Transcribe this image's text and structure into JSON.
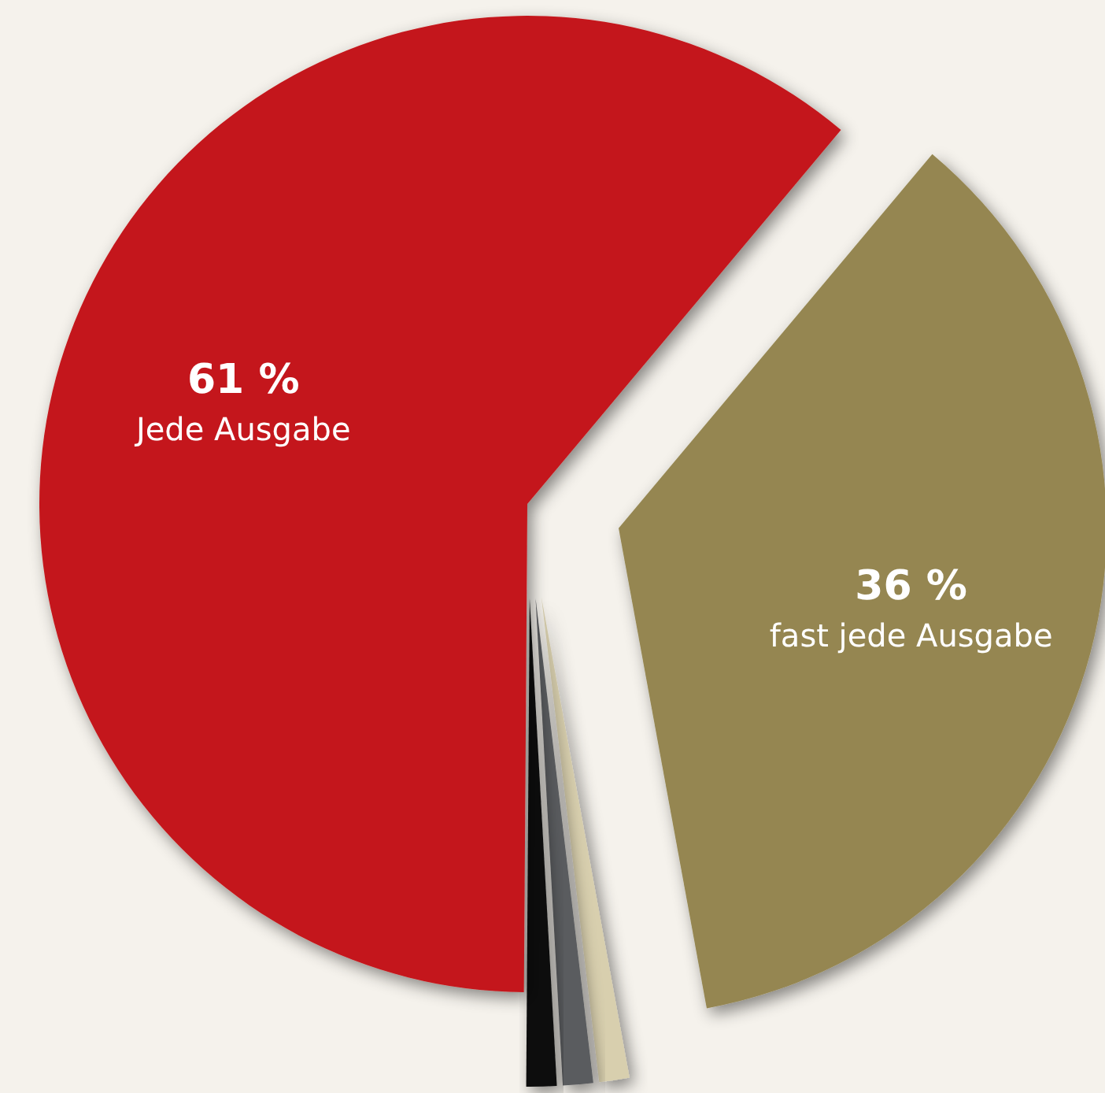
{
  "chart_data": {
    "type": "pie",
    "categories": [
      "fast jede Ausgabe",
      null,
      null,
      null,
      "Jede Ausgabe"
    ],
    "values": [
      36,
      1,
      1,
      1,
      61
    ],
    "colors": [
      "#958651",
      "#d8cfae",
      "#5a5b5e",
      "#111111",
      "#c4191b"
    ],
    "value_labels": [
      "36 %",
      null,
      null,
      null,
      "61 %"
    ]
  }
}
